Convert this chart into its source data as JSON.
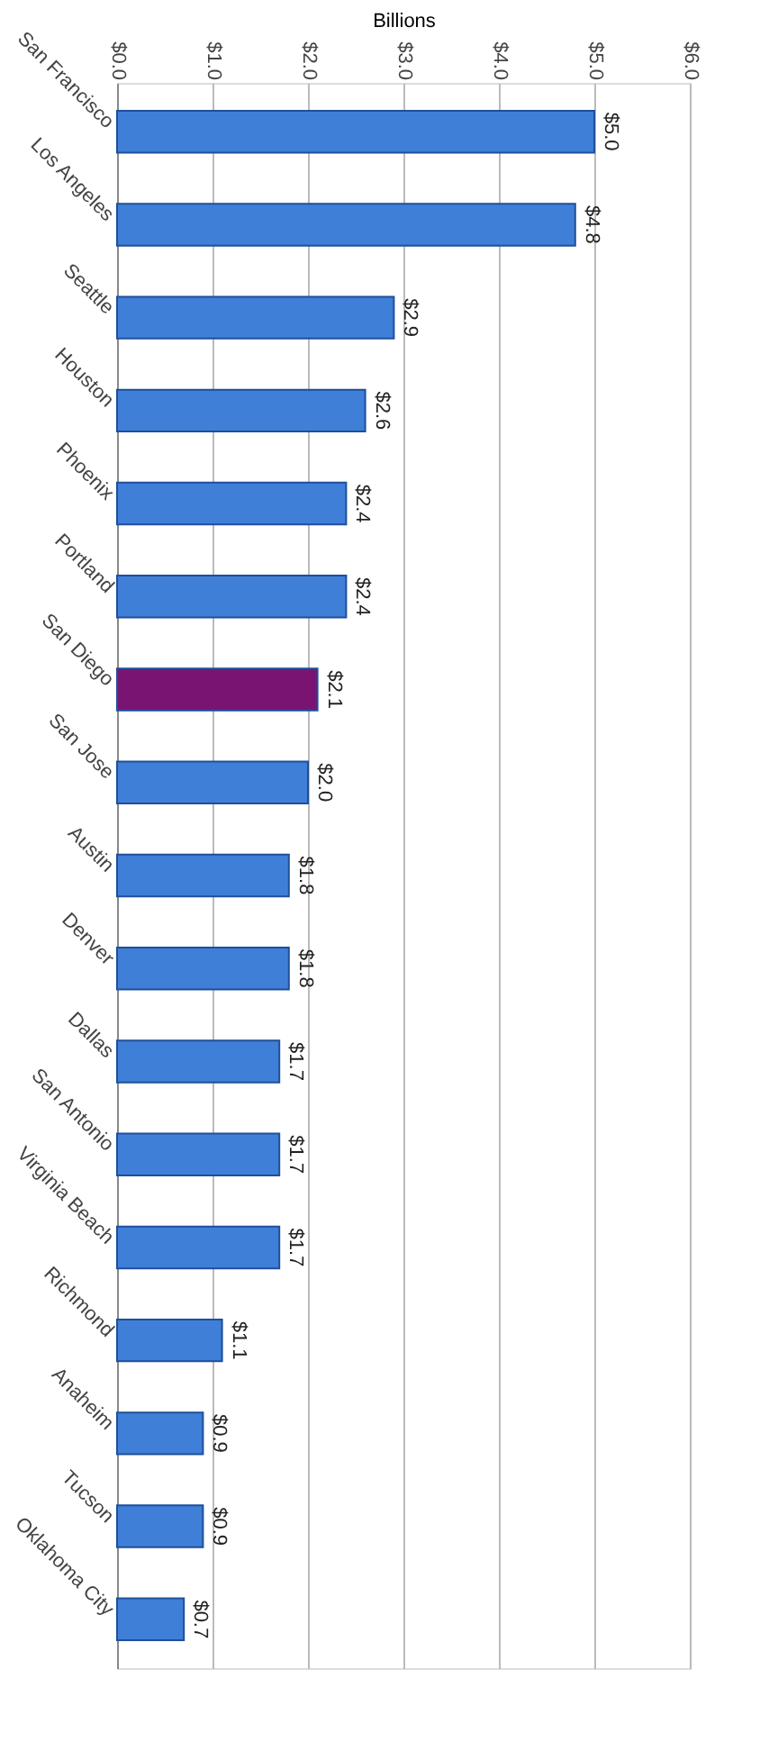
{
  "chart_data": {
    "type": "bar",
    "orientation": "horizontal",
    "xlabel": "Billions",
    "categories": [
      "San Francisco",
      "Los Angeles",
      "Seattle",
      "Houston",
      "Phoenix",
      "Portland",
      "San Diego",
      "San Jose",
      "Austin",
      "Denver",
      "Dallas",
      "San Antonio",
      "Virginia Beach",
      "Richmond",
      "Anaheim",
      "Tucson",
      "Oklahoma City"
    ],
    "values": [
      5.0,
      4.8,
      2.9,
      2.6,
      2.4,
      2.4,
      2.1,
      2.0,
      1.8,
      1.8,
      1.7,
      1.7,
      1.7,
      1.1,
      0.9,
      0.9,
      0.7
    ],
    "colors": [
      "#3f7fd8",
      "#3f7fd8",
      "#3f7fd8",
      "#3f7fd8",
      "#3f7fd8",
      "#3f7fd8",
      "#7a1472",
      "#3f7fd8",
      "#3f7fd8",
      "#3f7fd8",
      "#3f7fd8",
      "#3f7fd8",
      "#3f7fd8",
      "#3f7fd8",
      "#3f7fd8",
      "#3f7fd8",
      "#3f7fd8"
    ],
    "value_labels": [
      "$5.0",
      "$4.8",
      "$2.9",
      "$2.6",
      "$2.4",
      "$2.4",
      "$2.1",
      "$2.0",
      "$1.8",
      "$1.8",
      "$1.7",
      "$1.7",
      "$1.7",
      "$1.1",
      "$0.9",
      "$0.9",
      "$0.7"
    ],
    "xlim": [
      0,
      6
    ],
    "xticks": [
      {
        "value": 0,
        "label": "$0.0"
      },
      {
        "value": 1,
        "label": "$1.0"
      },
      {
        "value": 2,
        "label": "$2.0"
      },
      {
        "value": 3,
        "label": "$3.0"
      },
      {
        "value": 4,
        "label": "$4.0"
      },
      {
        "value": 5,
        "label": "$5.0"
      },
      {
        "value": 6,
        "label": "$6.0"
      }
    ],
    "grid": "x"
  }
}
